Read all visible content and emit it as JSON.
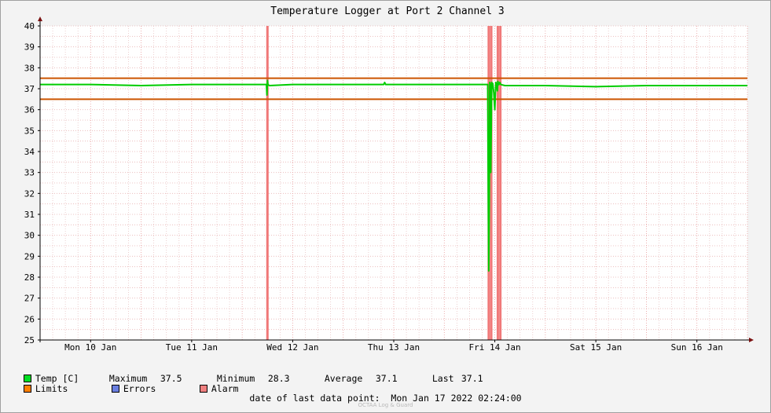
{
  "chart_data": {
    "type": "line",
    "title": "Temperature Logger at Port 2 Channel 3",
    "ylim": [
      25,
      40
    ],
    "yticks": [
      25,
      26,
      27,
      28,
      29,
      30,
      31,
      32,
      33,
      34,
      35,
      36,
      37,
      38,
      39,
      40
    ],
    "xlim": [
      0,
      7.0
    ],
    "xtick_labels": [
      {
        "label": "Mon 10 Jan",
        "x": 0.5
      },
      {
        "label": "Tue 11 Jan",
        "x": 1.5
      },
      {
        "label": "Wed 12 Jan",
        "x": 2.5
      },
      {
        "label": "Thu 13 Jan",
        "x": 3.5
      },
      {
        "label": "Fri 14 Jan",
        "x": 4.5
      },
      {
        "label": "Sat 15 Jan",
        "x": 5.5
      },
      {
        "label": "Sun 16 Jan",
        "x": 6.5
      }
    ],
    "limits": {
      "upper": 37.5,
      "lower": 36.5,
      "color": "#cc5500"
    },
    "alarm_x": [
      2.25,
      4.44,
      4.465,
      4.53,
      4.555
    ],
    "alarm_color": "#f07878",
    "series": [
      {
        "name": "Temp [C]",
        "color": "#00cc00",
        "x": [
          0,
          0.5,
          1.0,
          1.5,
          2.0,
          2.24,
          2.245,
          2.25,
          2.255,
          2.27,
          2.5,
          3.0,
          3.4,
          3.41,
          3.42,
          3.5,
          4.0,
          4.43,
          4.435,
          4.44,
          4.445,
          4.45,
          4.455,
          4.46,
          4.47,
          4.475,
          4.48,
          4.49,
          4.5,
          4.51,
          4.52,
          4.525,
          4.53,
          4.54,
          4.55,
          4.56,
          4.6,
          5.0,
          5.5,
          6.0,
          6.5,
          7.0
        ],
        "y": [
          37.2,
          37.2,
          37.15,
          37.2,
          37.2,
          37.2,
          36.7,
          37.4,
          37.2,
          37.15,
          37.2,
          37.2,
          37.2,
          37.3,
          37.2,
          37.2,
          37.2,
          37.2,
          32.0,
          28.3,
          31.5,
          37.3,
          37.2,
          33.0,
          37.3,
          37.2,
          37.25,
          36.8,
          36.0,
          37.3,
          37.2,
          36.9,
          37.35,
          37.2,
          37.3,
          37.2,
          37.15,
          37.15,
          37.1,
          37.15,
          37.15,
          37.15
        ]
      }
    ],
    "legend": {
      "temp_label": "Temp [C]",
      "maximum_label": "Maximum",
      "maximum_value": "37.5",
      "minimum_label": "Minimum",
      "minimum_value": "28.3",
      "average_label": "Average",
      "average_value": "37.1",
      "last_label": "Last",
      "last_value": "37.1",
      "limits_label": "Limits",
      "errors_label": "Errors",
      "alarm_label": "Alarm",
      "temp_color": "#00dd22",
      "limits_color": "#ff7f00",
      "errors_color": "#6a7fe0",
      "alarm_color": "#f08080"
    }
  },
  "footer": {
    "last_point_label": "date of last data point:",
    "last_point_value": "Mon Jan 17 2022 02:24:00",
    "brand": "OCTAA Log & Guard"
  }
}
